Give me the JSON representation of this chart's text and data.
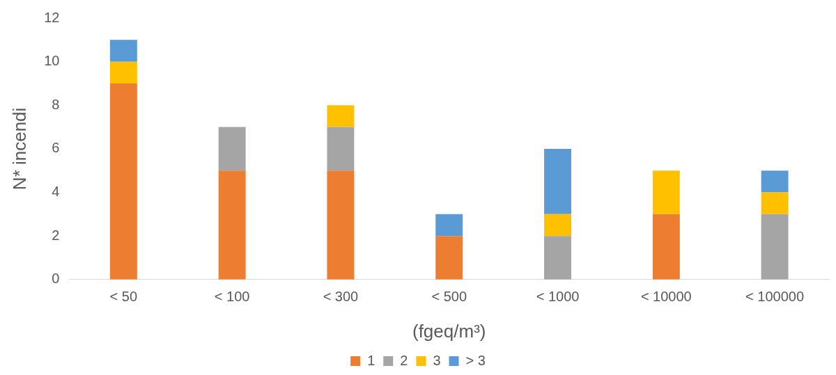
{
  "chart_data": {
    "type": "bar",
    "stacked": true,
    "xlabel": "(fgeq/m³)",
    "ylabel": "N* incendi",
    "categories": [
      "< 50",
      "< 100",
      "< 300",
      "< 500",
      "< 1000",
      "< 10000",
      "< 100000"
    ],
    "series": [
      {
        "name": "1",
        "color": "#ed7d31",
        "values": [
          9,
          5,
          5,
          2,
          0,
          3,
          0
        ]
      },
      {
        "name": "2",
        "color": "#a5a5a5",
        "values": [
          0,
          2,
          2,
          0,
          2,
          0,
          3
        ]
      },
      {
        "name": "3",
        "color": "#ffc000",
        "values": [
          1,
          0,
          1,
          0,
          1,
          2,
          1
        ]
      },
      {
        "name": "> 3",
        "color": "#5b9bd5",
        "values": [
          1,
          0,
          0,
          1,
          3,
          0,
          1
        ]
      }
    ],
    "ylim": [
      0,
      12
    ],
    "yticks": [
      0,
      2,
      4,
      6,
      8,
      10,
      12
    ],
    "grid": false,
    "legend": "bottom"
  }
}
